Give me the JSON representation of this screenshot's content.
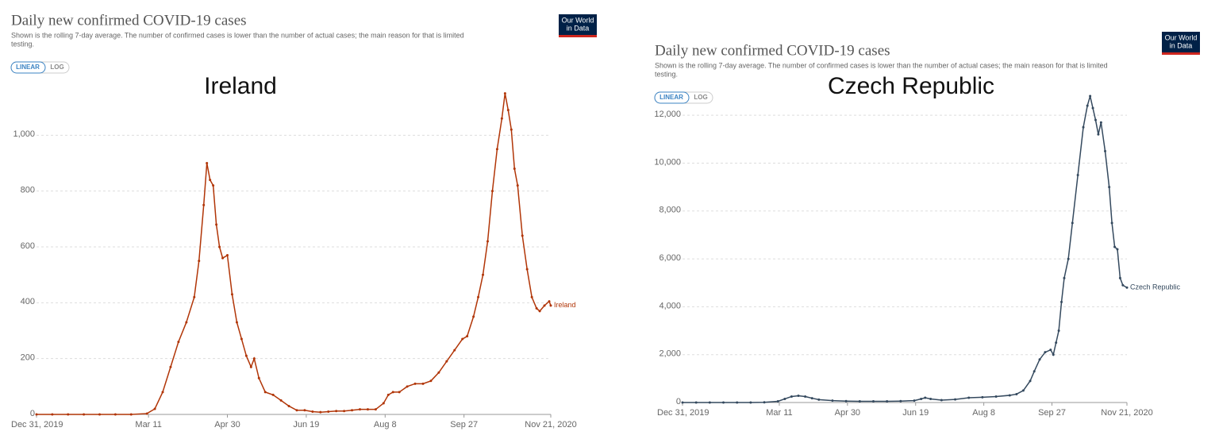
{
  "chart_data": [
    {
      "type": "line",
      "title": "Daily new confirmed COVID-19 cases",
      "subtitle": [
        "Shown is the rolling 7-day average. The number of confirmed cases is lower than the number of actual cases; the main reason for that is limited",
        "testing."
      ],
      "buttons": [
        "LINEAR",
        "LOG"
      ],
      "logo": [
        "Our World",
        "in Data"
      ],
      "annotation": "Ireland",
      "x": [
        0,
        10,
        20,
        30,
        40,
        50,
        60,
        70,
        75,
        80,
        85,
        90,
        95,
        100,
        103,
        106,
        108,
        110,
        112,
        114,
        116,
        118,
        121,
        124,
        127,
        130,
        133,
        136,
        138,
        141,
        145,
        150,
        155,
        160,
        165,
        170,
        175,
        180,
        185,
        190,
        195,
        200,
        205,
        210,
        215,
        220,
        223,
        226,
        230,
        235,
        240,
        245,
        250,
        255,
        260,
        265,
        270,
        273,
        277,
        280,
        283,
        286,
        289,
        292,
        295,
        297,
        299,
        301,
        303,
        305,
        308,
        311,
        314,
        317,
        319,
        322,
        325,
        326
      ],
      "series": [
        {
          "name": "Ireland",
          "color": "#b13507",
          "values": [
            0,
            0,
            0,
            0,
            0,
            0,
            0,
            3,
            20,
            80,
            170,
            260,
            330,
            420,
            550,
            750,
            900,
            840,
            820,
            680,
            600,
            560,
            570,
            430,
            330,
            270,
            210,
            170,
            200,
            130,
            80,
            70,
            50,
            30,
            15,
            15,
            10,
            8,
            10,
            12,
            12,
            15,
            18,
            18,
            18,
            40,
            70,
            80,
            80,
            100,
            110,
            110,
            120,
            150,
            190,
            230,
            270,
            280,
            350,
            420,
            500,
            620,
            800,
            950,
            1060,
            1150,
            1090,
            1020,
            880,
            820,
            640,
            520,
            420,
            380,
            370,
            390,
            405,
            390
          ]
        }
      ],
      "xlim": [
        0,
        326
      ],
      "xticks": [
        {
          "value": 0,
          "label": "Dec 31, 2019"
        },
        {
          "value": 71,
          "label": "Mar 11"
        },
        {
          "value": 121,
          "label": "Apr 30"
        },
        {
          "value": 171,
          "label": "Jun 19"
        },
        {
          "value": 221,
          "label": "Aug 8"
        },
        {
          "value": 271,
          "label": "Sep 27"
        },
        {
          "value": 326,
          "label": "Nov 21, 2020"
        }
      ],
      "ylim": [
        0,
        1200
      ],
      "yticks": [
        0,
        200,
        400,
        600,
        800,
        {
          "value": 1000,
          "label": "1,000"
        }
      ],
      "grid": true
    },
    {
      "type": "line",
      "title": "Daily new confirmed COVID-19 cases",
      "subtitle": [
        "Shown is the rolling 7-day average. The number of confirmed cases is lower than the number of actual cases; the main reason for that is limited",
        "testing."
      ],
      "buttons": [
        "LINEAR",
        "LOG"
      ],
      "logo": [
        "Our World",
        "in Data"
      ],
      "annotation": "Czech Republic",
      "x": [
        0,
        10,
        20,
        30,
        40,
        50,
        60,
        70,
        75,
        80,
        85,
        90,
        95,
        100,
        110,
        120,
        130,
        140,
        150,
        160,
        170,
        175,
        178,
        182,
        190,
        200,
        210,
        220,
        230,
        240,
        245,
        250,
        255,
        258,
        262,
        266,
        270,
        272,
        274,
        276,
        278,
        280,
        283,
        286,
        290,
        294,
        297,
        299,
        301,
        303,
        305,
        307,
        310,
        313,
        315,
        317,
        319,
        321,
        323,
        326
      ],
      "series": [
        {
          "name": "Czech Republic",
          "color": "#34495e",
          "values": [
            0,
            0,
            0,
            0,
            0,
            0,
            10,
            50,
            150,
            250,
            280,
            250,
            180,
            120,
            80,
            60,
            50,
            50,
            50,
            60,
            80,
            150,
            200,
            150,
            100,
            130,
            200,
            220,
            250,
            300,
            350,
            500,
            900,
            1300,
            1800,
            2100,
            2200,
            2000,
            2500,
            3000,
            4200,
            5200,
            6000,
            7500,
            9500,
            11500,
            12400,
            12800,
            12300,
            11800,
            11200,
            11700,
            10500,
            9000,
            7500,
            6500,
            6400,
            5200,
            4900,
            4800
          ]
        }
      ],
      "xlim": [
        0,
        326
      ],
      "xticks": [
        {
          "value": 0,
          "label": "Dec 31, 2019"
        },
        {
          "value": 71,
          "label": "Mar 11"
        },
        {
          "value": 121,
          "label": "Apr 30"
        },
        {
          "value": 171,
          "label": "Jun 19"
        },
        {
          "value": 221,
          "label": "Aug 8"
        },
        {
          "value": 271,
          "label": "Sep 27"
        },
        {
          "value": 326,
          "label": "Nov 21, 2020"
        }
      ],
      "ylim": [
        0,
        13000
      ],
      "yticks": [
        0,
        {
          "value": 2000,
          "label": "2,000"
        },
        {
          "value": 4000,
          "label": "4,000"
        },
        {
          "value": 6000,
          "label": "6,000"
        },
        {
          "value": 8000,
          "label": "8,000"
        },
        {
          "value": 10000,
          "label": "10,000"
        },
        {
          "value": 12000,
          "label": "12,000"
        }
      ],
      "grid": true
    }
  ]
}
